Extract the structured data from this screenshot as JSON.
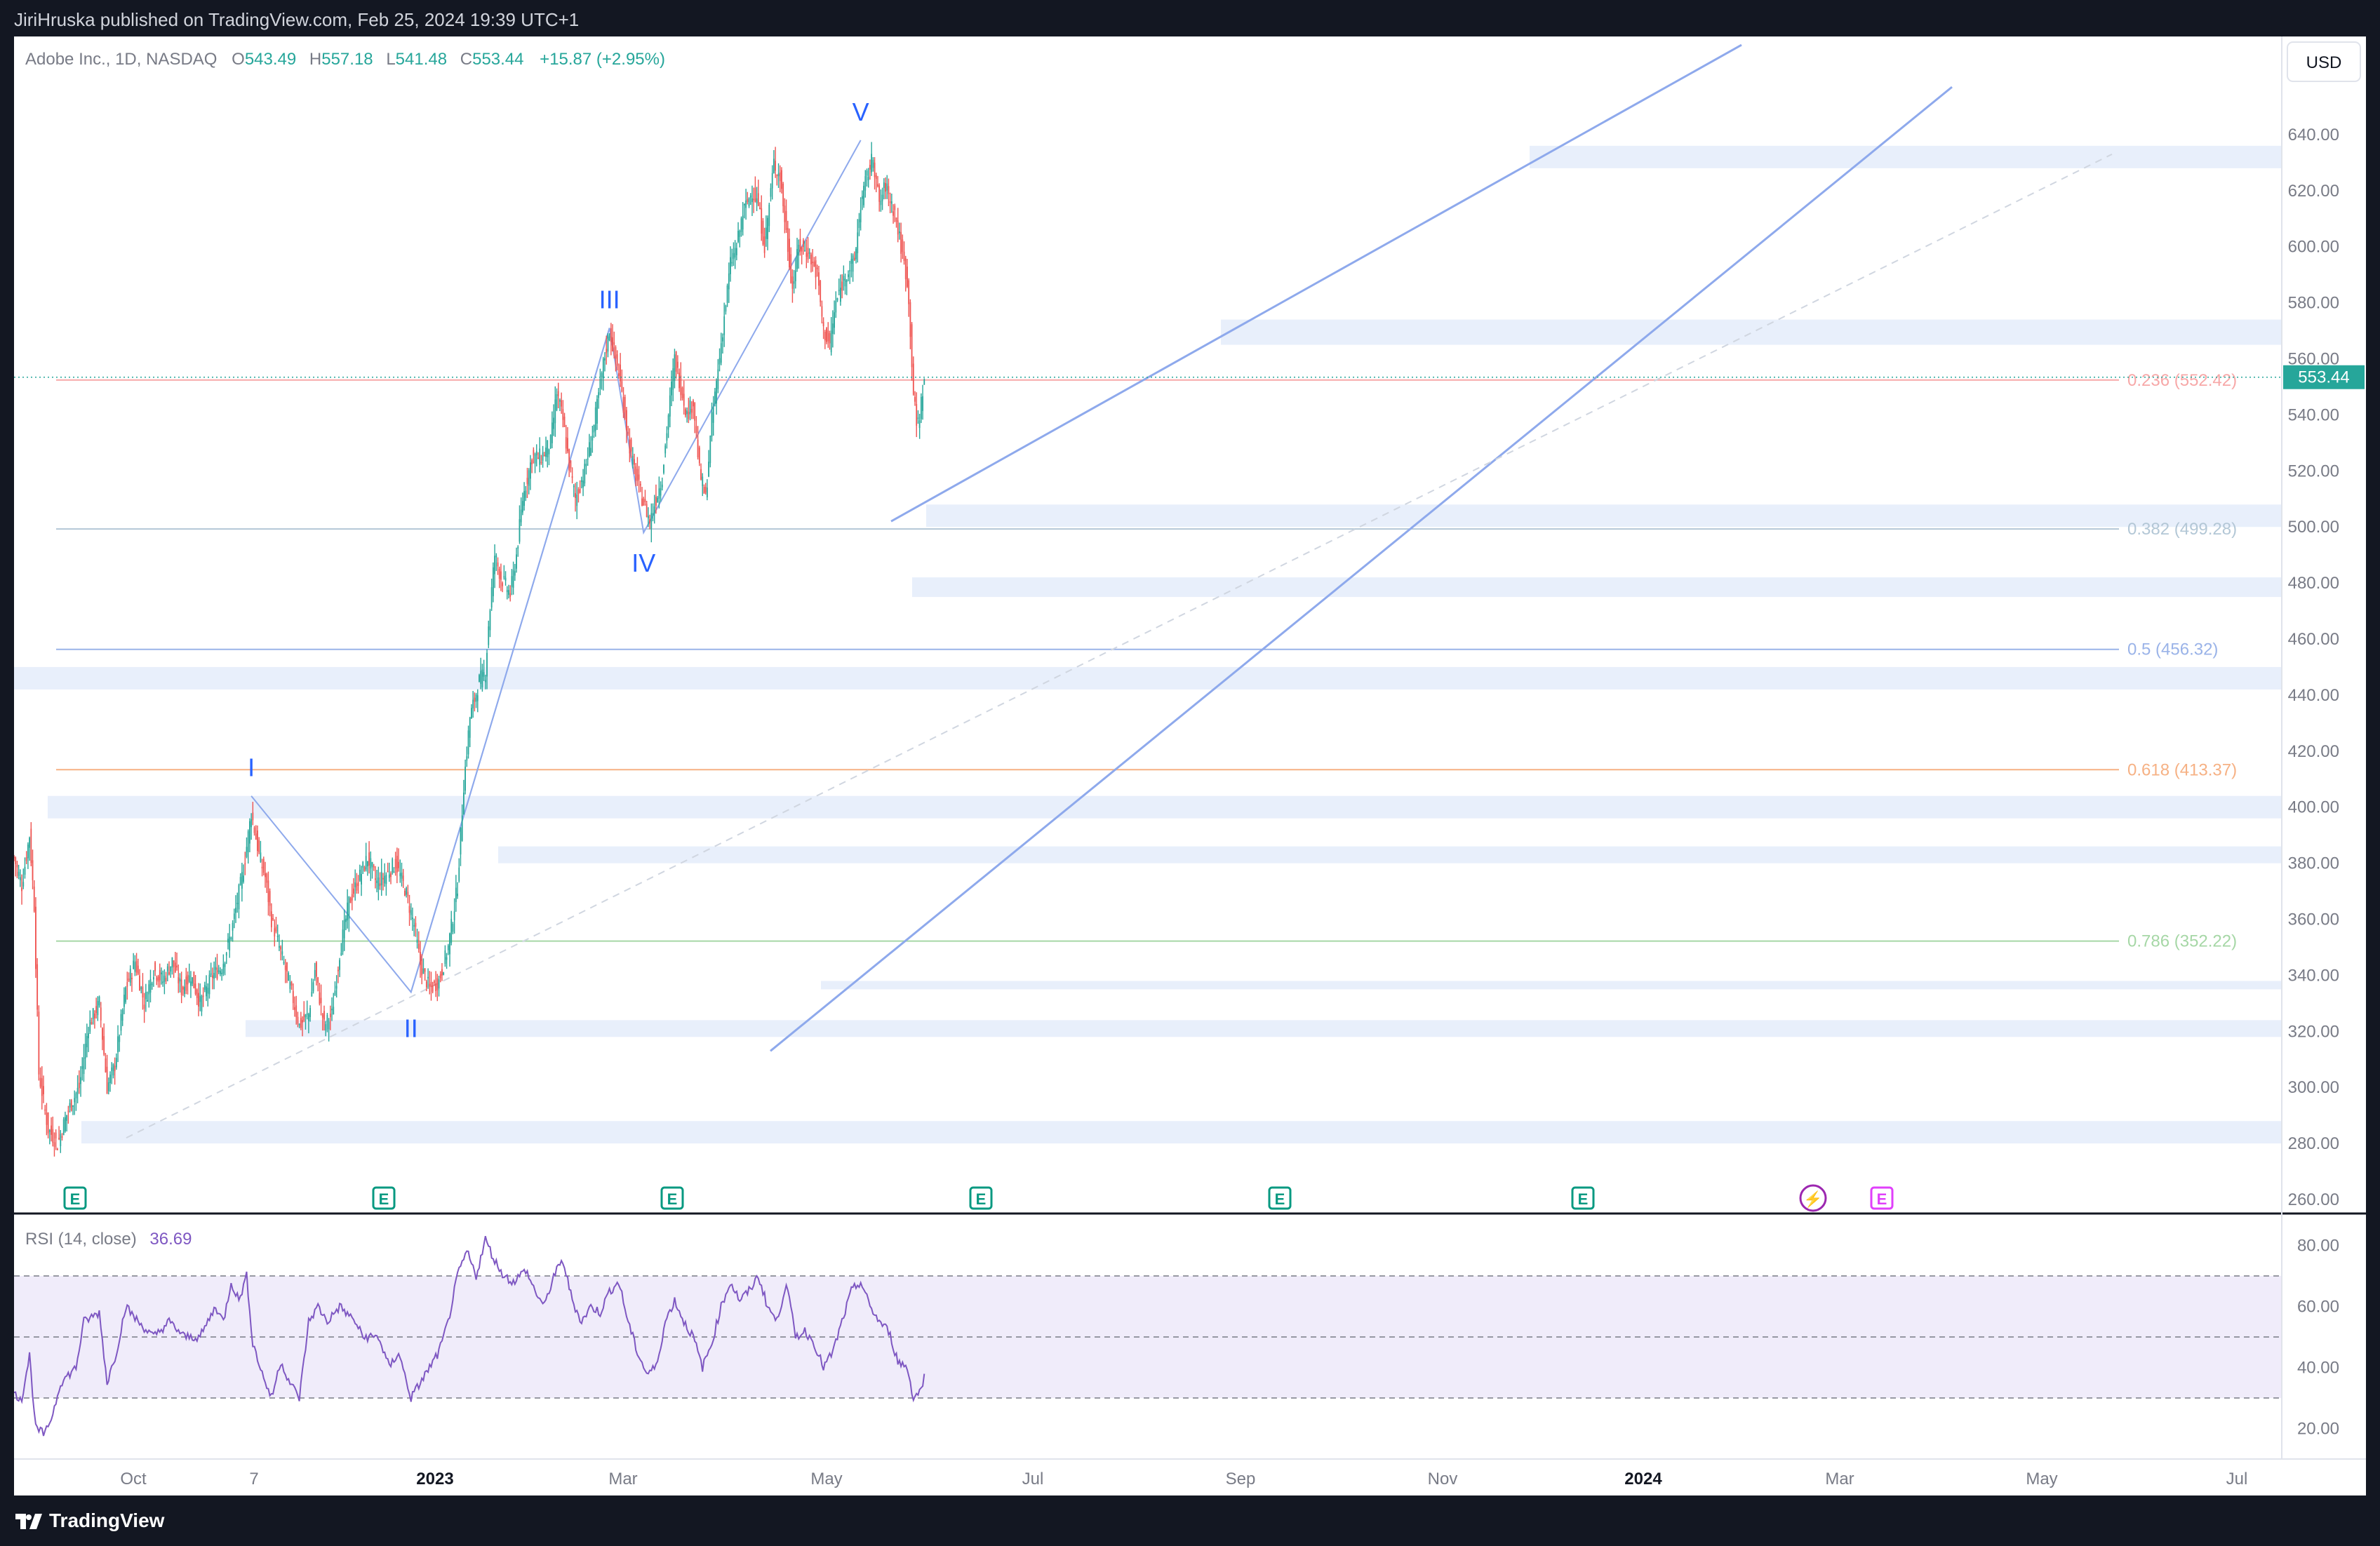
{
  "header": {
    "publisher_line": "JiriHruska published on TradingView.com, Feb 25, 2024 19:39 UTC+1"
  },
  "legend": {
    "symbol": "Adobe Inc., 1D, NASDAQ",
    "o_label": "O",
    "o_value": "543.49",
    "h_label": "H",
    "h_value": "557.18",
    "l_label": "L",
    "l_value": "541.48",
    "c_label": "C",
    "c_value": "553.44",
    "change": "+15.87 (+2.95%)"
  },
  "currency": "USD",
  "last_price_tag": "553.44",
  "price_axis": [
    "640.00",
    "620.00",
    "600.00",
    "580.00",
    "560.00",
    "540.00",
    "520.00",
    "500.00",
    "480.00",
    "460.00",
    "440.00",
    "420.00",
    "400.00",
    "380.00",
    "360.00",
    "340.00",
    "320.00",
    "300.00",
    "280.00",
    "260.00"
  ],
  "time_axis": [
    {
      "label": "Oct",
      "bold": false
    },
    {
      "label": "7",
      "bold": false
    },
    {
      "label": "2023",
      "bold": true
    },
    {
      "label": "Mar",
      "bold": false
    },
    {
      "label": "May",
      "bold": false
    },
    {
      "label": "Jul",
      "bold": false
    },
    {
      "label": "Sep",
      "bold": false
    },
    {
      "label": "Nov",
      "bold": false
    },
    {
      "label": "2024",
      "bold": true
    },
    {
      "label": "Mar",
      "bold": false
    },
    {
      "label": "May",
      "bold": false
    },
    {
      "label": "Jul",
      "bold": false
    }
  ],
  "fib_levels": [
    {
      "label": "0.236 (552.42)",
      "price": 552.42,
      "color": "#f7a8a8"
    },
    {
      "label": "0.382 (499.28)",
      "price": 499.28,
      "color": "#b3c7d6"
    },
    {
      "label": "0.5 (456.32)",
      "price": 456.32,
      "color": "#9ab3e8"
    },
    {
      "label": "0.618 (413.37)",
      "price": 413.37,
      "color": "#f6b184"
    },
    {
      "label": "0.786 (352.22)",
      "price": 352.22,
      "color": "#a6d7a6"
    }
  ],
  "wave_labels": [
    {
      "label": "I",
      "price": 404
    },
    {
      "label": "II",
      "price": 332
    },
    {
      "label": "III",
      "price": 571
    },
    {
      "label": "IV",
      "price": 498
    },
    {
      "label": "V",
      "price": 638
    }
  ],
  "rsi": {
    "title": "RSI (14, close)",
    "value": "36.69",
    "axis": [
      "80.00",
      "60.00",
      "40.00",
      "20.00"
    ]
  },
  "events": [
    "E",
    "E",
    "E",
    "E",
    "E",
    "E",
    "⚡",
    "E"
  ],
  "footer": {
    "brand": "TradingView"
  },
  "colors": {
    "up": "#26a69a",
    "down": "#ef5350",
    "channel": "#8ea9ec",
    "zone": "#e8effb",
    "rsi": "#7e57c2",
    "rsi_band": "#f0ecfa"
  },
  "chart_data": {
    "type": "candlestick",
    "title": "Adobe Inc., 1D, NASDAQ",
    "ylim": [
      255,
      660
    ],
    "rsi_ylim": [
      10,
      90
    ],
    "anchors": [
      [
        0,
        382
      ],
      [
        5,
        372
      ],
      [
        10,
        390
      ],
      [
        13,
        365
      ],
      [
        16,
        305
      ],
      [
        22,
        285
      ],
      [
        28,
        280
      ],
      [
        35,
        292
      ],
      [
        42,
        300
      ],
      [
        48,
        322
      ],
      [
        55,
        330
      ],
      [
        60,
        300
      ],
      [
        65,
        308
      ],
      [
        72,
        335
      ],
      [
        78,
        345
      ],
      [
        84,
        330
      ],
      [
        90,
        342
      ],
      [
        96,
        338
      ],
      [
        102,
        345
      ],
      [
        108,
        335
      ],
      [
        114,
        340
      ],
      [
        120,
        330
      ],
      [
        128,
        340
      ],
      [
        134,
        343
      ],
      [
        140,
        355
      ],
      [
        148,
        378
      ],
      [
        153,
        398
      ],
      [
        158,
        383
      ],
      [
        162,
        375
      ],
      [
        166,
        360
      ],
      [
        172,
        348
      ],
      [
        178,
        336
      ],
      [
        184,
        322
      ],
      [
        190,
        326
      ],
      [
        194,
        342
      ],
      [
        200,
        322
      ],
      [
        205,
        326
      ],
      [
        210,
        348
      ],
      [
        216,
        366
      ],
      [
        222,
        374
      ],
      [
        228,
        382
      ],
      [
        234,
        373
      ],
      [
        240,
        376
      ],
      [
        246,
        380
      ],
      [
        252,
        371
      ],
      [
        258,
        358
      ],
      [
        262,
        344
      ],
      [
        268,
        335
      ],
      [
        274,
        338
      ],
      [
        280,
        350
      ],
      [
        286,
        372
      ],
      [
        290,
        408
      ],
      [
        294,
        432
      ],
      [
        300,
        445
      ],
      [
        304,
        448
      ],
      [
        306,
        465
      ],
      [
        310,
        490
      ],
      [
        314,
        482
      ],
      [
        320,
        476
      ],
      [
        324,
        490
      ],
      [
        328,
        510
      ],
      [
        334,
        525
      ],
      [
        340,
        525
      ],
      [
        346,
        530
      ],
      [
        350,
        548
      ],
      [
        354,
        538
      ],
      [
        358,
        522
      ],
      [
        362,
        510
      ],
      [
        368,
        520
      ],
      [
        374,
        536
      ],
      [
        380,
        558
      ],
      [
        384,
        570
      ],
      [
        390,
        555
      ],
      [
        394,
        540
      ],
      [
        398,
        525
      ],
      [
        404,
        512
      ],
      [
        410,
        502
      ],
      [
        414,
        510
      ],
      [
        418,
        518
      ],
      [
        422,
        540
      ],
      [
        426,
        560
      ],
      [
        430,
        550
      ],
      [
        434,
        540
      ],
      [
        438,
        545
      ],
      [
        442,
        520
      ],
      [
        446,
        510
      ],
      [
        450,
        538
      ],
      [
        454,
        556
      ],
      [
        458,
        575
      ],
      [
        462,
        594
      ],
      [
        466,
        600
      ],
      [
        470,
        612
      ],
      [
        476,
        620
      ],
      [
        480,
        615
      ],
      [
        484,
        600
      ],
      [
        490,
        630
      ],
      [
        494,
        625
      ],
      [
        498,
        605
      ],
      [
        502,
        585
      ],
      [
        506,
        600
      ],
      [
        512,
        598
      ],
      [
        518,
        590
      ],
      [
        522,
        570
      ],
      [
        526,
        565
      ],
      [
        530,
        580
      ],
      [
        536,
        590
      ],
      [
        542,
        595
      ],
      [
        546,
        615
      ],
      [
        550,
        625
      ],
      [
        554,
        632
      ],
      [
        558,
        615
      ],
      [
        562,
        622
      ],
      [
        568,
        612
      ],
      [
        572,
        600
      ],
      [
        576,
        588
      ],
      [
        578,
        570
      ],
      [
        580,
        548
      ],
      [
        582,
        536
      ],
      [
        584,
        540
      ],
      [
        587,
        553
      ]
    ],
    "rsi_anchors": [
      [
        0,
        31
      ],
      [
        5,
        30
      ],
      [
        10,
        44
      ],
      [
        14,
        20
      ],
      [
        20,
        18
      ],
      [
        25,
        25
      ],
      [
        30,
        35
      ],
      [
        40,
        40
      ],
      [
        45,
        55
      ],
      [
        55,
        58
      ],
      [
        60,
        35
      ],
      [
        66,
        45
      ],
      [
        72,
        60
      ],
      [
        80,
        55
      ],
      [
        90,
        50
      ],
      [
        100,
        55
      ],
      [
        110,
        50
      ],
      [
        120,
        50
      ],
      [
        130,
        60
      ],
      [
        135,
        55
      ],
      [
        140,
        68
      ],
      [
        145,
        62
      ],
      [
        150,
        70
      ],
      [
        154,
        48
      ],
      [
        160,
        38
      ],
      [
        166,
        30
      ],
      [
        172,
        42
      ],
      [
        178,
        35
      ],
      [
        184,
        30
      ],
      [
        190,
        55
      ],
      [
        196,
        60
      ],
      [
        202,
        55
      ],
      [
        210,
        60
      ],
      [
        220,
        55
      ],
      [
        225,
        50
      ],
      [
        235,
        50
      ],
      [
        242,
        40
      ],
      [
        248,
        45
      ],
      [
        256,
        30
      ],
      [
        262,
        35
      ],
      [
        268,
        40
      ],
      [
        274,
        45
      ],
      [
        280,
        55
      ],
      [
        286,
        70
      ],
      [
        292,
        78
      ],
      [
        298,
        70
      ],
      [
        304,
        82
      ],
      [
        310,
        75
      ],
      [
        316,
        70
      ],
      [
        322,
        68
      ],
      [
        330,
        72
      ],
      [
        336,
        65
      ],
      [
        342,
        60
      ],
      [
        348,
        70
      ],
      [
        354,
        75
      ],
      [
        360,
        62
      ],
      [
        366,
        55
      ],
      [
        372,
        60
      ],
      [
        378,
        58
      ],
      [
        384,
        65
      ],
      [
        390,
        68
      ],
      [
        396,
        55
      ],
      [
        402,
        45
      ],
      [
        408,
        38
      ],
      [
        414,
        40
      ],
      [
        420,
        55
      ],
      [
        426,
        62
      ],
      [
        432,
        55
      ],
      [
        438,
        50
      ],
      [
        444,
        40
      ],
      [
        450,
        48
      ],
      [
        456,
        60
      ],
      [
        462,
        68
      ],
      [
        468,
        62
      ],
      [
        474,
        65
      ],
      [
        480,
        70
      ],
      [
        486,
        60
      ],
      [
        492,
        55
      ],
      [
        498,
        68
      ],
      [
        504,
        50
      ],
      [
        510,
        52
      ],
      [
        516,
        48
      ],
      [
        522,
        40
      ],
      [
        528,
        45
      ],
      [
        534,
        55
      ],
      [
        540,
        65
      ],
      [
        546,
        68
      ],
      [
        552,
        60
      ],
      [
        558,
        55
      ],
      [
        564,
        52
      ],
      [
        570,
        42
      ],
      [
        576,
        40
      ],
      [
        580,
        30
      ],
      [
        584,
        32
      ],
      [
        587,
        37
      ]
    ]
  }
}
